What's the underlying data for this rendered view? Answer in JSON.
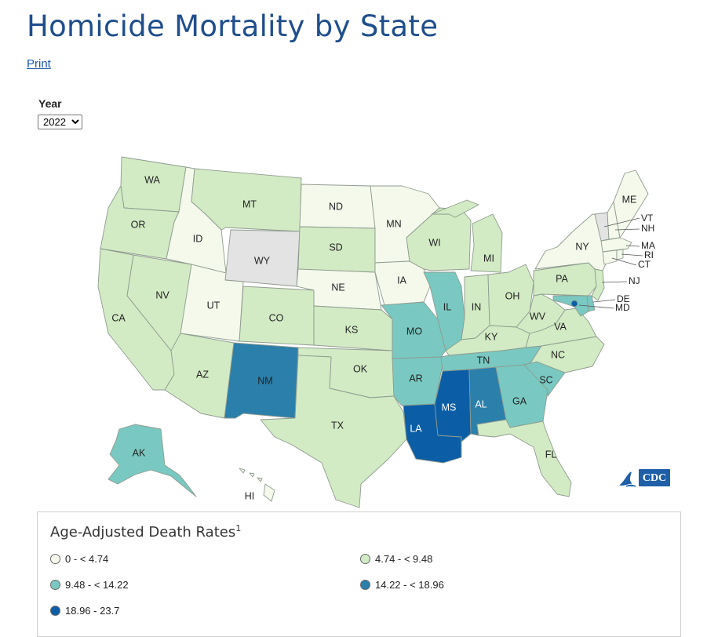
{
  "header": {
    "title": "Homicide Mortality by State",
    "print_label": "Print"
  },
  "filter": {
    "year_label": "Year",
    "year_value": "2022",
    "year_options": [
      "2022"
    ]
  },
  "colors": {
    "class1": "#f4f9ec",
    "class2": "#d2ebc4",
    "class3": "#79c9c2",
    "class4": "#2b7fab",
    "class5": "#0b5ea6",
    "no_data": "#e3e3e3"
  },
  "map": {
    "states": {
      "WA": {
        "label": "WA",
        "class": "class2"
      },
      "OR": {
        "label": "OR",
        "class": "class2"
      },
      "CA": {
        "label": "CA",
        "class": "class2"
      },
      "NV": {
        "label": "NV",
        "class": "class2"
      },
      "ID": {
        "label": "ID",
        "class": "class1"
      },
      "MT": {
        "label": "MT",
        "class": "class2"
      },
      "WY": {
        "label": "WY",
        "class": "no_data"
      },
      "UT": {
        "label": "UT",
        "class": "class1"
      },
      "AZ": {
        "label": "AZ",
        "class": "class2"
      },
      "CO": {
        "label": "CO",
        "class": "class2"
      },
      "NM": {
        "label": "NM",
        "class": "class4"
      },
      "ND": {
        "label": "ND",
        "class": "class1"
      },
      "SD": {
        "label": "SD",
        "class": "class2"
      },
      "NE": {
        "label": "NE",
        "class": "class1"
      },
      "KS": {
        "label": "KS",
        "class": "class2"
      },
      "OK": {
        "label": "OK",
        "class": "class2"
      },
      "TX": {
        "label": "TX",
        "class": "class2"
      },
      "MN": {
        "label": "MN",
        "class": "class1"
      },
      "IA": {
        "label": "IA",
        "class": "class1"
      },
      "MO": {
        "label": "MO",
        "class": "class3"
      },
      "AR": {
        "label": "AR",
        "class": "class3"
      },
      "LA": {
        "label": "LA",
        "class": "class5"
      },
      "WI": {
        "label": "WI",
        "class": "class2"
      },
      "IL": {
        "label": "IL",
        "class": "class3"
      },
      "MI": {
        "label": "MI",
        "class": "class2"
      },
      "IN": {
        "label": "IN",
        "class": "class2"
      },
      "OH": {
        "label": "OH",
        "class": "class2"
      },
      "KY": {
        "label": "KY",
        "class": "class2"
      },
      "TN": {
        "label": "TN",
        "class": "class3"
      },
      "MS": {
        "label": "MS",
        "class": "class5"
      },
      "AL": {
        "label": "AL",
        "class": "class4"
      },
      "GA": {
        "label": "GA",
        "class": "class3"
      },
      "FL": {
        "label": "FL",
        "class": "class2"
      },
      "SC": {
        "label": "SC",
        "class": "class3"
      },
      "NC": {
        "label": "NC",
        "class": "class2"
      },
      "VA": {
        "label": "VA",
        "class": "class2"
      },
      "WV": {
        "label": "WV",
        "class": "class2"
      },
      "PA": {
        "label": "PA",
        "class": "class2"
      },
      "NY": {
        "label": "NY",
        "class": "class1"
      },
      "ME": {
        "label": "ME",
        "class": "class1"
      },
      "VT": {
        "label": "VT",
        "class": "no_data"
      },
      "NH": {
        "label": "NH",
        "class": "class1"
      },
      "MA": {
        "label": "MA",
        "class": "class1"
      },
      "RI": {
        "label": "RI",
        "class": "class1"
      },
      "CT": {
        "label": "CT",
        "class": "class1"
      },
      "NJ": {
        "label": "NJ",
        "class": "class2"
      },
      "DE": {
        "label": "DE",
        "class": "class3"
      },
      "MD": {
        "label": "MD",
        "class": "class3"
      },
      "DC": {
        "label": "",
        "class": "class5"
      },
      "AK": {
        "label": "AK",
        "class": "class3"
      },
      "HI": {
        "label": "HI",
        "class": "class1"
      }
    }
  },
  "legend": {
    "title": "Age-Adjusted Death Rates",
    "footnote": "1",
    "items": [
      {
        "label": "0 - < 4.74",
        "class": "class1"
      },
      {
        "label": "4.74 - < 9.48",
        "class": "class2"
      },
      {
        "label": "9.48 - < 14.22",
        "class": "class3"
      },
      {
        "label": "14.22 - < 18.96",
        "class": "class4"
      },
      {
        "label": "18.96 - 23.7",
        "class": "class5"
      }
    ]
  },
  "logo": {
    "text": "CDC"
  }
}
